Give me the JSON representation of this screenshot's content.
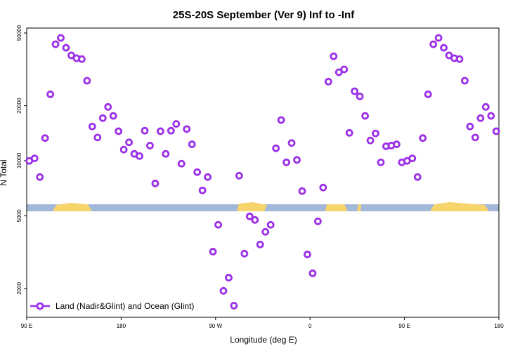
{
  "chart_data": {
    "type": "scatter",
    "title": "25S-20S September (Ver 9)   Inf to -Inf",
    "x_label": "Longitude (deg E)",
    "y_label": "N Total",
    "log_y": true,
    "xlim": [
      90,
      540
    ],
    "ylim": [
      1390,
      53200
    ],
    "xticks": [
      {
        "value": 90,
        "label": "90 E"
      },
      180,
      {
        "value": 270,
        "label": "90 W"
      },
      {
        "value": 360,
        "label": "0"
      },
      {
        "value": 450,
        "label": "90 E"
      },
      {
        "value": 540,
        "label": "180"
      }
    ],
    "yticks": [
      2000,
      5000,
      10000,
      20000,
      50000
    ],
    "legend_position": "lower left",
    "series": [
      {
        "name": "Land (Nadir&Glint) and Ocean (Glint)",
        "color": "#9b30e8",
        "x": [
          92.5,
          97.5,
          102.5,
          107.5,
          112.5,
          117.5,
          122.5,
          127.5,
          132.5,
          137.5,
          142.5,
          147.5,
          152.5,
          157.5,
          162.5,
          167.5,
          172.5,
          177.5,
          182.5,
          187.5,
          192.5,
          197.5,
          202.5,
          207.5,
          212.5,
          217.5,
          222.5,
          227.5,
          232.5,
          237.5,
          242.5,
          247.5,
          252.5,
          257.5,
          262.5,
          267.5,
          272.5,
          277.5,
          282.5,
          287.5,
          292.5,
          297.5,
          302.5,
          307.5,
          312.5,
          317.5,
          322.5,
          327.5,
          332.5,
          337.5,
          342.5,
          347.5,
          352.5,
          357.5,
          362.5,
          367.5,
          372.5,
          377.5,
          382.5,
          387.5,
          392.5,
          397.5,
          402.5,
          407.5,
          412.5,
          417.5,
          422.5,
          427.5,
          432.5,
          437.5,
          442.5,
          447.5,
          452.5,
          457.5,
          462.5,
          467.5,
          472.5,
          477.5,
          482.5,
          487.5,
          492.5,
          497.5,
          502.5,
          507.5,
          512.5,
          517.5,
          522.5,
          527.5,
          532.5,
          537.5
        ],
        "values": [
          9980,
          10300,
          8140,
          13300,
          23100,
          43400,
          47000,
          41500,
          37700,
          36400,
          36000,
          27400,
          15400,
          13400,
          17100,
          19700,
          17600,
          14500,
          11500,
          12600,
          10900,
          10600,
          14600,
          12100,
          7510,
          14500,
          10900,
          14600,
          15900,
          9630,
          14900,
          12300,
          8660,
          6880,
          8140,
          3180,
          4460,
          1940,
          2290,
          1610,
          8280,
          3100,
          4960,
          4740,
          3480,
          4080,
          4460,
          11700,
          16700,
          9800,
          12500,
          10100,
          6820,
          3070,
          2420,
          4660,
          7130,
          27100,
          37300,
          30500,
          31600,
          14200,
          24000,
          22500,
          17600,
          12900,
          14100,
          9800,
          12000,
          12100,
          12300,
          9800,
          9980,
          10300,
          8140,
          13300,
          23100,
          43400,
          47000,
          41500,
          37700,
          36400,
          36000,
          27400,
          15400,
          13400,
          17100,
          19700,
          17600,
          14500
        ]
      }
    ]
  }
}
